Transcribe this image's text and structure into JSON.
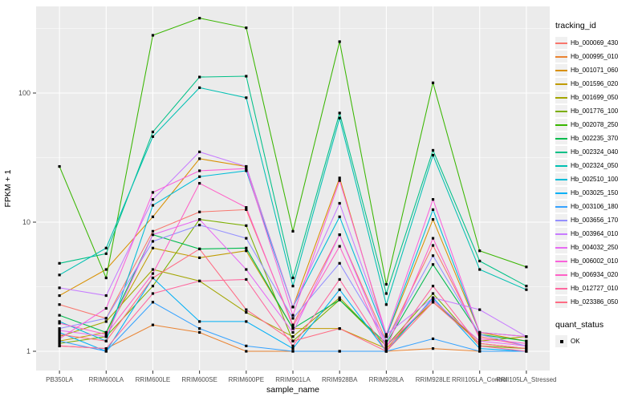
{
  "figure": {
    "background": "#FFFFFF",
    "panel_background": "#EBEBEB",
    "gridline_color": "#FFFFFF",
    "tick_color": "#333333",
    "tick_text_color": "#4D4D4D",
    "axis_title_color": "#000000",
    "point_color": "#000000"
  },
  "chart_data": {
    "type": "line",
    "title": "",
    "xlabel": "sample_name",
    "ylabel": "FPKM + 1",
    "y_scale": "log10",
    "y_ticks": [
      1,
      10,
      100
    ],
    "ylim": [
      0.72,
      470
    ],
    "grid": "on",
    "legend_position": "right",
    "legend_title": "tracking_id",
    "point_legend": {
      "title": "quant_status",
      "label": "OK"
    },
    "categories": [
      "PB350LA",
      "RRIM600LA",
      "RRIM600LE",
      "RRIM600SE",
      "RRIM600PE",
      "RRIM901LA",
      "RRIM928BA",
      "RRIM928LA",
      "RRIM928LE",
      "RRII105LA_Control",
      "RRII105LA_Stressed"
    ],
    "series": [
      {
        "name": "Hb_000069_430",
        "color": "#F8766D",
        "values": [
          2.3,
          1.8,
          8.5,
          12,
          12.5,
          1.6,
          8.0,
          1.2,
          6.6,
          1.3,
          1.1
        ]
      },
      {
        "name": "Hb_000995_010",
        "color": "#EA8331",
        "values": [
          1.1,
          1.05,
          1.6,
          1.4,
          1.0,
          1.0,
          1.0,
          1.0,
          1.05,
          1.0,
          1.0
        ]
      },
      {
        "name": "Hb_001071_060",
        "color": "#D89000",
        "values": [
          2.7,
          4.3,
          11,
          31,
          27,
          2.2,
          22,
          1.3,
          10.5,
          1.4,
          1.2
        ]
      },
      {
        "name": "Hb_001596_020",
        "color": "#C09B00",
        "values": [
          1.2,
          1.4,
          6.3,
          5.3,
          6.0,
          1.5,
          1.5,
          1.05,
          2.5,
          1.15,
          1.05
        ]
      },
      {
        "name": "Hb_001699_050",
        "color": "#A3A500",
        "values": [
          1.3,
          1.7,
          4.3,
          3.5,
          2.0,
          1.3,
          2.6,
          1.1,
          2.4,
          1.2,
          1.3
        ]
      },
      {
        "name": "Hb_001776_100",
        "color": "#7CAE00",
        "values": [
          1.15,
          1.3,
          3.2,
          10.5,
          9.4,
          1.2,
          2.5,
          1.1,
          2.8,
          1.1,
          1.05
        ]
      },
      {
        "name": "Hb_002078_250",
        "color": "#39B600",
        "values": [
          27,
          3.7,
          280,
          380,
          320,
          8.5,
          250,
          3.3,
          120,
          6.0,
          4.5
        ]
      },
      {
        "name": "Hb_002235_370",
        "color": "#00BB4E",
        "values": [
          1.9,
          1.4,
          8.0,
          6.2,
          6.3,
          1.5,
          2.5,
          1.15,
          4.7,
          1.35,
          1.2
        ]
      },
      {
        "name": "Hb_002324_040",
        "color": "#00C087",
        "values": [
          4.8,
          5.7,
          50,
          133,
          135,
          3.7,
          70,
          2.8,
          36,
          5.0,
          3.2
        ]
      },
      {
        "name": "Hb_002324_050",
        "color": "#00C0B2",
        "values": [
          3.9,
          6.3,
          46,
          110,
          92,
          3.2,
          64,
          2.3,
          33,
          4.3,
          3.0
        ]
      },
      {
        "name": "Hb_002510_100",
        "color": "#00BCD8",
        "values": [
          1.7,
          1.2,
          13.5,
          22.5,
          25,
          2.2,
          11,
          1.3,
          12.5,
          1.4,
          1.3
        ]
      },
      {
        "name": "Hb_003025_150",
        "color": "#00B0F6",
        "values": [
          1.4,
          1.0,
          3.7,
          1.7,
          1.7,
          1.05,
          3.0,
          1.0,
          2.6,
          1.05,
          1.0
        ]
      },
      {
        "name": "Hb_003106_180",
        "color": "#35A2FF",
        "values": [
          1.2,
          1.0,
          2.4,
          1.5,
          1.1,
          1.0,
          1.0,
          1.0,
          1.25,
          1.0,
          1.0
        ]
      },
      {
        "name": "Hb_003656_170",
        "color": "#9590FF",
        "values": [
          1.5,
          1.8,
          7.1,
          9.5,
          7.5,
          1.8,
          4.8,
          1.2,
          5.5,
          1.35,
          1.1
        ]
      },
      {
        "name": "Hb_003964_010",
        "color": "#C77CFF",
        "values": [
          3.1,
          2.7,
          15,
          35,
          27,
          2.2,
          14,
          1.35,
          2.6,
          2.1,
          1.3
        ]
      },
      {
        "name": "Hb_004032_250",
        "color": "#E76BF3",
        "values": [
          1.45,
          1.3,
          8.0,
          10.5,
          4.3,
          1.4,
          8.0,
          1.1,
          2.5,
          1.2,
          1.1
        ]
      },
      {
        "name": "Hb_006002_010",
        "color": "#FA62DB",
        "values": [
          1.25,
          2.15,
          17,
          25,
          26,
          1.9,
          21,
          1.35,
          15,
          1.4,
          1.3
        ]
      },
      {
        "name": "Hb_006934_020",
        "color": "#FF61C7",
        "values": [
          1.65,
          1.35,
          4.0,
          20,
          13,
          1.55,
          6.5,
          1.05,
          7.5,
          1.25,
          1.15
        ]
      },
      {
        "name": "Hb_012727_010",
        "color": "#FF689F",
        "values": [
          1.1,
          1.05,
          2.8,
          3.5,
          3.6,
          1.1,
          3.6,
          1.0,
          3.2,
          1.1,
          1.0
        ]
      },
      {
        "name": "Hb_023386_050",
        "color": "#FF6C84",
        "values": [
          1.35,
          1.2,
          3.7,
          6.2,
          2.1,
          1.2,
          1.5,
          1.0,
          2.4,
          1.15,
          1.05
        ]
      }
    ]
  }
}
